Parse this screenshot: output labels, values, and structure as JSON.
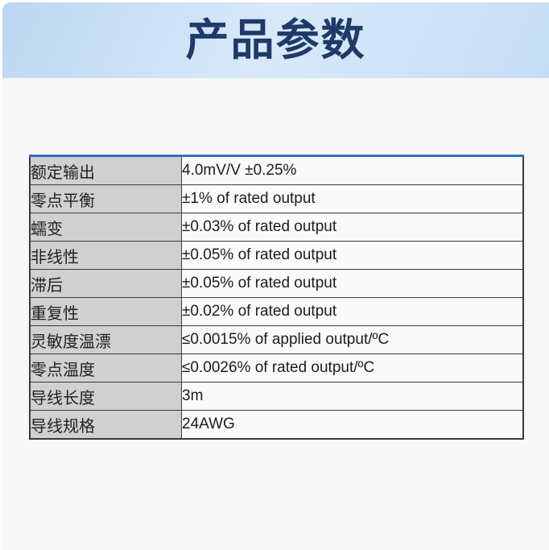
{
  "page": {
    "title": "产品参数"
  },
  "table": {
    "rows": [
      {
        "label": "额定输出",
        "value": "4.0mV/V ±0.25%"
      },
      {
        "label": "零点平衡",
        "value": "±1% of rated output"
      },
      {
        "label": "蠕变",
        "value": "±0.03% of rated output"
      },
      {
        "label": "非线性",
        "value": "±0.05% of rated output"
      },
      {
        "label": "滞后",
        "value": "±0.05% of rated output"
      },
      {
        "label": "重复性",
        "value": "±0.02% of rated output"
      },
      {
        "label": "灵敏度温漂",
        "value": "≤0.0015% of applied output/ºC"
      },
      {
        "label": "零点温度",
        "value": "≤0.0026% of rated output/ºC"
      },
      {
        "label": "导线长度",
        "value": "3m"
      },
      {
        "label": "导线规格",
        "value": "24AWG"
      }
    ]
  },
  "colors": {
    "banner_gradient_start": "#bdd7f1",
    "banner_gradient_mid": "#d8e8f9",
    "banner_gradient_end": "#c6ddf4",
    "title_text": "#1f3a68",
    "page_background": "#f7f7f8",
    "label_cell_background": "#d0d0d0",
    "value_cell_background": "#fafafa",
    "grid_border": "#3a3a3a",
    "table_top_border": "#2e74b5"
  }
}
